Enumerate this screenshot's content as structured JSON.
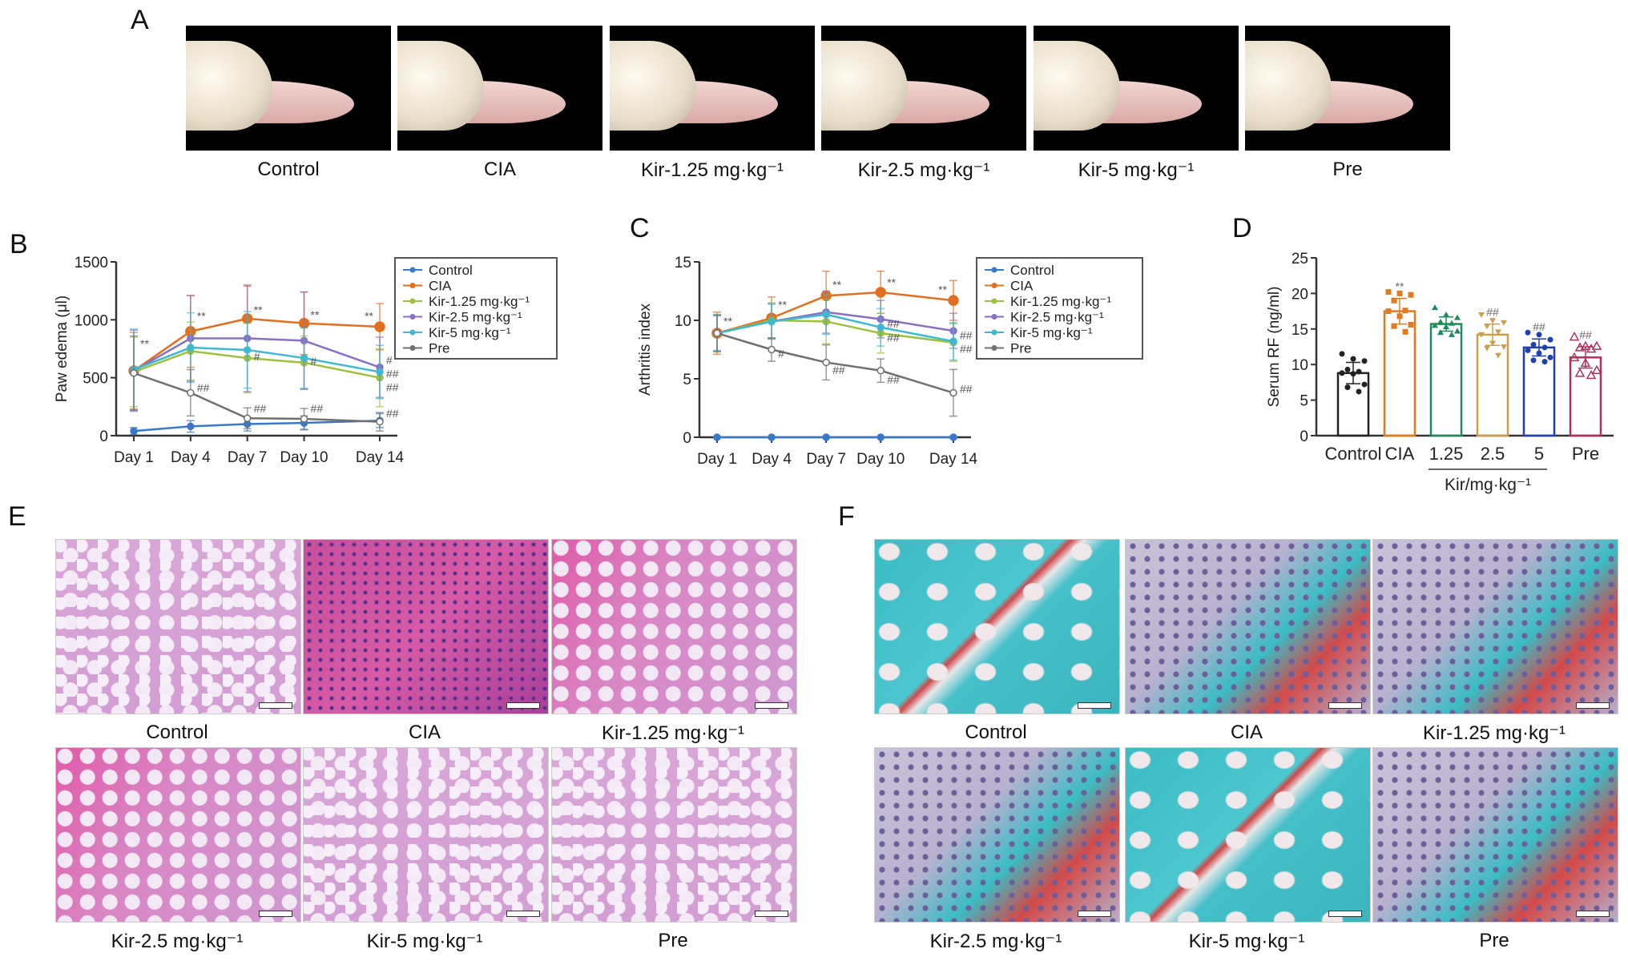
{
  "panels": {
    "a": "A",
    "b": "B",
    "c": "C",
    "d": "D",
    "e": "E",
    "f": "F"
  },
  "panel_a": {
    "captions": [
      "Control",
      "CIA",
      "Kir-1.25 mg·kg⁻¹",
      "Kir-2.5 mg·kg⁻¹",
      "Kir-5 mg·kg⁻¹",
      "Pre"
    ]
  },
  "panel_e": {
    "captions": [
      "Control",
      "CIA",
      "Kir-1.25 mg·kg⁻¹",
      "Kir-2.5 mg·kg⁻¹",
      "Kir-5 mg·kg⁻¹",
      "Pre"
    ]
  },
  "panel_f": {
    "captions": [
      "Control",
      "CIA",
      "Kir-1.25 mg·kg⁻¹",
      "Kir-2.5 mg·kg⁻¹",
      "Kir-5 mg·kg⁻¹",
      "Pre"
    ]
  },
  "chart_data": [
    {
      "type": "line",
      "panel": "B",
      "ylabel": "Paw edema (μl)",
      "categories": [
        "Day 1",
        "Day 4",
        "Day 7",
        "Day 10",
        "Day 14"
      ],
      "ylim": [
        0,
        1500
      ],
      "yticks": [
        "0",
        "500",
        "1000",
        "1500"
      ],
      "legend": "right",
      "series": [
        {
          "name": "Control",
          "color": "#3a78c8",
          "values": [
            40,
            80,
            100,
            110,
            130
          ],
          "error": [
            30,
            50,
            60,
            60,
            60
          ]
        },
        {
          "name": "CIA",
          "color": "#e07020",
          "values": [
            560,
            900,
            1010,
            970,
            940
          ],
          "error": [
            330,
            310,
            280,
            270,
            200
          ]
        },
        {
          "name": "Kir-1.25 mg·kg⁻¹",
          "color": "#9cc040",
          "values": [
            550,
            730,
            670,
            630,
            500
          ],
          "error": [
            300,
            250,
            300,
            230,
            250
          ]
        },
        {
          "name": "Kir-2.5 mg·kg⁻¹",
          "color": "#8a70c0",
          "values": [
            560,
            840,
            840,
            820,
            590
          ],
          "error": [
            350,
            370,
            460,
            420,
            260
          ]
        },
        {
          "name": "Kir-5 mg·kg⁻¹",
          "color": "#40b8d0",
          "values": [
            570,
            760,
            740,
            670,
            550
          ],
          "error": [
            350,
            300,
            330,
            260,
            230
          ]
        },
        {
          "name": "Pre",
          "color": "#707070",
          "values": [
            540,
            370,
            150,
            145,
            120
          ],
          "error": [
            320,
            200,
            90,
            90,
            80
          ]
        }
      ],
      "annotations": [
        {
          "x": 0,
          "y": 760,
          "text": "**"
        },
        {
          "x": 1,
          "y": 1000,
          "text": "**"
        },
        {
          "x": 1,
          "y": 380,
          "text": "##"
        },
        {
          "x": 2,
          "y": 1050,
          "text": "**"
        },
        {
          "x": 2,
          "y": 650,
          "text": "#"
        },
        {
          "x": 2,
          "y": 200,
          "text": "##"
        },
        {
          "x": 3,
          "y": 1010,
          "text": "**"
        },
        {
          "x": 3,
          "y": 610,
          "text": "#"
        },
        {
          "x": 3,
          "y": 200,
          "text": "##"
        },
        {
          "x": 4,
          "y": 1000,
          "text": "**",
          "side": "left"
        },
        {
          "x": 4,
          "y": 620,
          "text": "#"
        },
        {
          "x": 4,
          "y": 550,
          "text": "##"
        },
        {
          "x": 4,
          "y": 470,
          "text": "##"
        },
        {
          "x": 4,
          "y": 160,
          "text": "##"
        }
      ]
    },
    {
      "type": "line",
      "panel": "C",
      "ylabel": "Arthritis index",
      "categories": [
        "Day 1",
        "Day 4",
        "Day 7",
        "Day 10",
        "Day 14"
      ],
      "ylim": [
        0,
        15
      ],
      "yticks": [
        "0",
        "5",
        "10",
        "15"
      ],
      "legend": "right",
      "series": [
        {
          "name": "Control",
          "color": "#3a78c8",
          "values": [
            0,
            0,
            0,
            0,
            0
          ],
          "error": [
            0,
            0,
            0,
            0,
            0
          ]
        },
        {
          "name": "CIA",
          "color": "#e07020",
          "values": [
            8.9,
            10.2,
            12.1,
            12.4,
            11.7
          ],
          "error": [
            1.8,
            1.8,
            2.1,
            1.8,
            1.7
          ]
        },
        {
          "name": "Kir-1.25 mg·kg⁻¹",
          "color": "#9cc040",
          "values": [
            8.9,
            10.0,
            9.9,
            8.9,
            8.1
          ],
          "error": [
            1.5,
            1.5,
            1.9,
            1.7,
            1.6
          ]
        },
        {
          "name": "Kir-2.5 mg·kg⁻¹",
          "color": "#8a70c0",
          "values": [
            8.9,
            9.9,
            10.7,
            10.1,
            9.1
          ],
          "error": [
            1.5,
            1.5,
            1.8,
            1.6,
            1.5
          ]
        },
        {
          "name": "Kir-5 mg·kg⁻¹",
          "color": "#40b8d0",
          "values": [
            8.9,
            9.9,
            10.5,
            9.4,
            8.2
          ],
          "error": [
            1.5,
            1.5,
            1.7,
            1.6,
            1.6
          ]
        },
        {
          "name": "Pre",
          "color": "#707070",
          "values": [
            8.9,
            7.5,
            6.4,
            5.7,
            3.8
          ],
          "error": [
            1.6,
            1.0,
            1.5,
            1.0,
            2.0
          ]
        }
      ],
      "annotations": [
        {
          "x": 0,
          "y": 9.6,
          "text": "**"
        },
        {
          "x": 1,
          "y": 11.0,
          "text": "**"
        },
        {
          "x": 1,
          "y": 6.8,
          "text": "#"
        },
        {
          "x": 2,
          "y": 12.7,
          "text": "**"
        },
        {
          "x": 2,
          "y": 5.4,
          "text": "##"
        },
        {
          "x": 3,
          "y": 12.9,
          "text": "**"
        },
        {
          "x": 3,
          "y": 9.4,
          "text": "##"
        },
        {
          "x": 3,
          "y": 8.2,
          "text": "##"
        },
        {
          "x": 3,
          "y": 4.6,
          "text": "##"
        },
        {
          "x": 4,
          "y": 12.3,
          "text": "**",
          "side": "left"
        },
        {
          "x": 4,
          "y": 8.4,
          "text": "##"
        },
        {
          "x": 4,
          "y": 7.6,
          "text": "##"
        },
        {
          "x": 4,
          "y": 3.8,
          "text": "##"
        }
      ]
    },
    {
      "type": "bar",
      "panel": "D",
      "ylabel": "Serum RF (ng/ml)",
      "categories": [
        "Control",
        "CIA",
        "1.25",
        "2.5",
        "5",
        "Pre"
      ],
      "group_label": "Kir/mg·kg⁻¹",
      "ylim": [
        0,
        25
      ],
      "yticks": [
        "0",
        "5",
        "10",
        "15",
        "20",
        "25"
      ],
      "colors": [
        "#222222",
        "#e07b20",
        "#1e8a5a",
        "#c8a050",
        "#2040b0",
        "#b03060"
      ],
      "markers": [
        "circle",
        "square",
        "triangle",
        "triangle-down",
        "circle",
        "triangle-open"
      ],
      "values": [
        8.8,
        17.5,
        15.7,
        14.2,
        12.4,
        11.0
      ],
      "error": [
        1.5,
        1.8,
        1.0,
        1.5,
        1.2,
        1.5
      ],
      "points": [
        [
          11.5,
          10.8,
          10.5,
          9.3,
          9.0,
          8.8,
          8.7,
          7.2,
          6.8,
          6.2
        ],
        [
          20.2,
          20.0,
          19.8,
          19.0,
          17.6,
          17.5,
          16.8,
          15.6,
          15.4,
          14.6
        ],
        [
          18.0,
          17.0,
          16.6,
          16.0,
          15.8,
          15.5,
          15.3,
          14.7,
          14.5,
          14.2
        ],
        [
          17.0,
          16.2,
          15.9,
          15.4,
          14.6,
          14.2,
          13.0,
          12.5,
          12.3,
          11.3
        ],
        [
          14.5,
          14.2,
          13.5,
          12.8,
          12.4,
          12.0,
          11.6,
          11.0,
          10.6,
          10.4
        ],
        [
          13.9,
          12.6,
          12.6,
          12.4,
          12.2,
          11.0,
          10.2,
          9.2,
          8.8,
          8.5
        ]
      ],
      "annotations": [
        "",
        "**",
        "",
        "##",
        "##",
        "##"
      ]
    }
  ]
}
